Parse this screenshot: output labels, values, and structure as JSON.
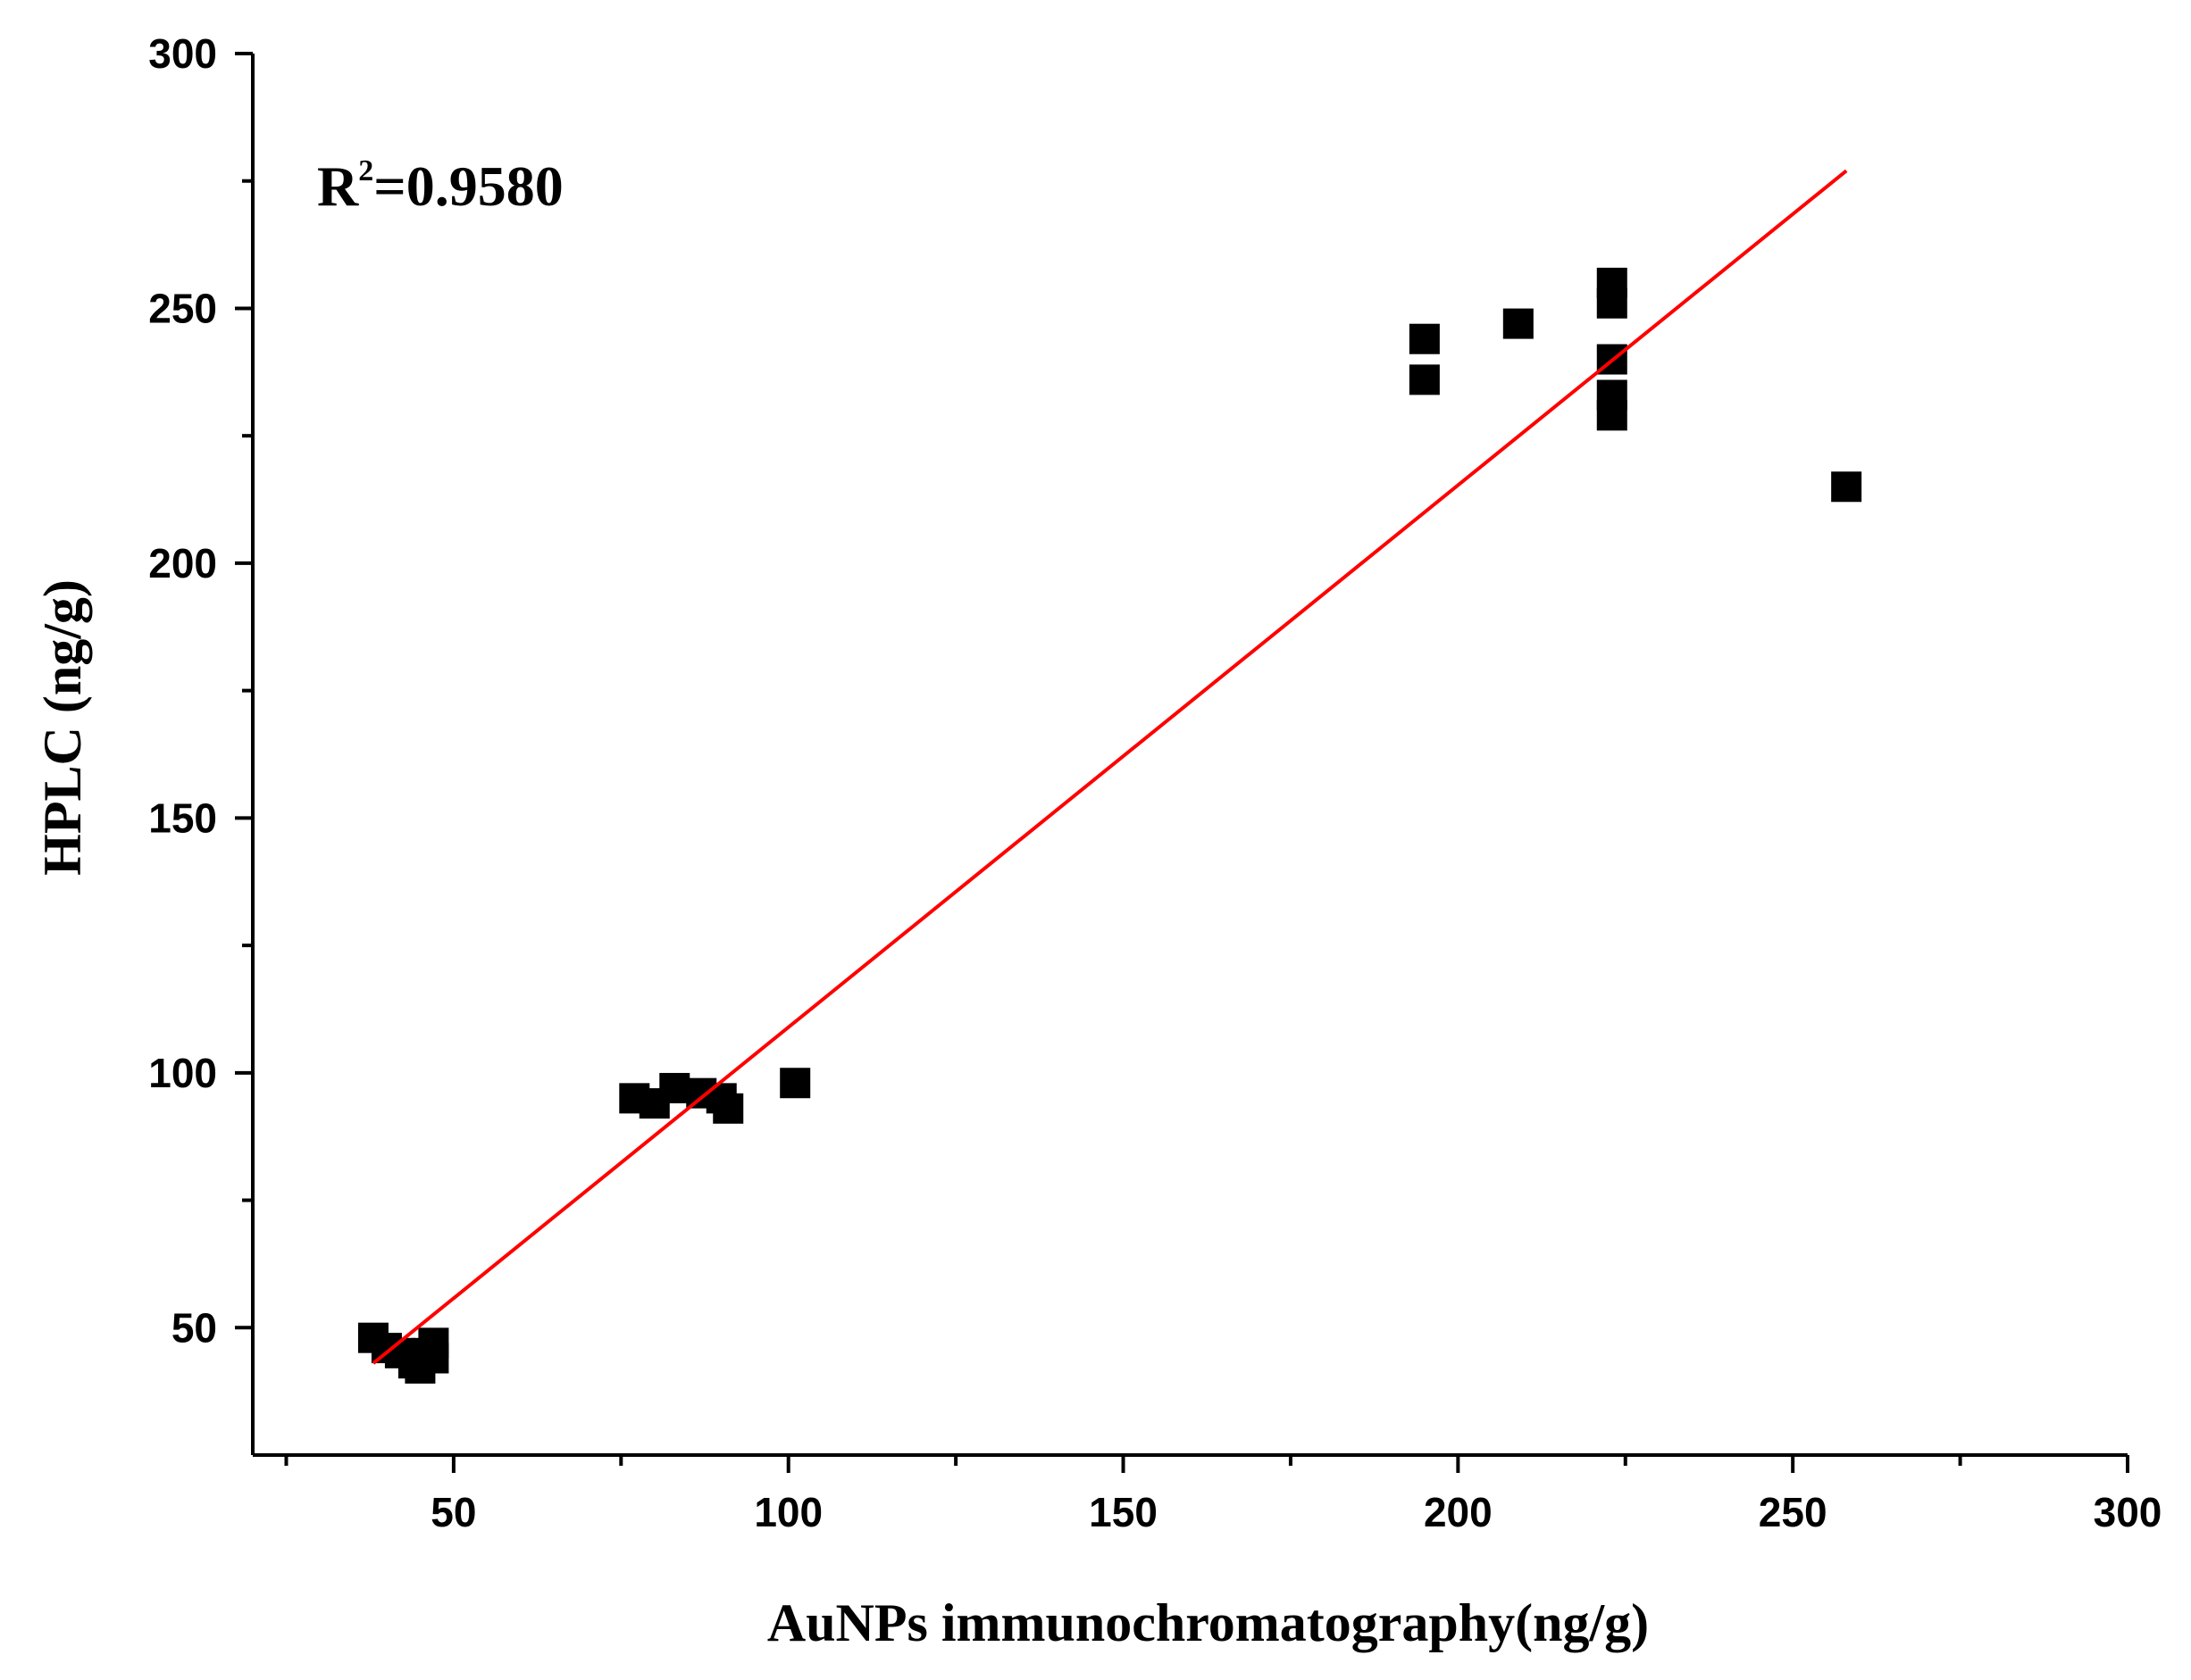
{
  "chart_data": {
    "type": "scatter",
    "xlabel": "AuNPs  immunochromatography(ng/g)",
    "ylabel": "HPLC (ng/g)",
    "xlim": [
      20,
      300
    ],
    "ylim": [
      25,
      300
    ],
    "x_ticks": [
      50,
      100,
      150,
      200,
      250,
      300
    ],
    "y_ticks": [
      50,
      100,
      150,
      200,
      250,
      300
    ],
    "x_tick_labels": [
      "50",
      "100",
      "150",
      "200",
      "250",
      "300"
    ],
    "y_tick_labels": [
      "50",
      "100",
      "150",
      "200",
      "250",
      "300"
    ],
    "x_minor_ticks": [
      25,
      75,
      125,
      175,
      225,
      275
    ],
    "y_minor_ticks": [
      75,
      125,
      175,
      225,
      275
    ],
    "annotation": {
      "base": "R",
      "sup": "2",
      "rest": "=0.9580"
    },
    "marker_color": "#000000",
    "fit_color": "#ff0000",
    "series": [
      {
        "points": [
          [
            38,
            48
          ],
          [
            40,
            46
          ],
          [
            42,
            45
          ],
          [
            44,
            43
          ],
          [
            45,
            42
          ],
          [
            46,
            45
          ],
          [
            47,
            44
          ],
          [
            47,
            47
          ],
          [
            77,
            95
          ],
          [
            80,
            94
          ],
          [
            83,
            97
          ],
          [
            87,
            96
          ],
          [
            90,
            95
          ],
          [
            91,
            93
          ],
          [
            101,
            98
          ],
          [
            195,
            244
          ],
          [
            195,
            236
          ],
          [
            209,
            247
          ],
          [
            223,
            255
          ],
          [
            223,
            251
          ],
          [
            223,
            240
          ],
          [
            223,
            233
          ],
          [
            223,
            229
          ],
          [
            258,
            215
          ]
        ]
      }
    ],
    "fit_line": {
      "x": [
        38,
        258
      ],
      "y": [
        43,
        277
      ]
    }
  }
}
